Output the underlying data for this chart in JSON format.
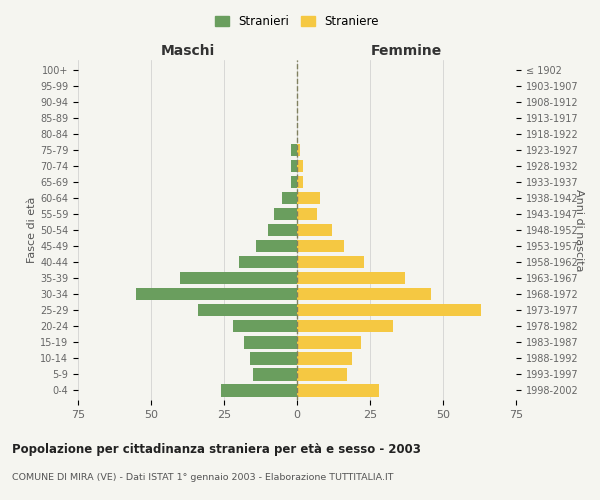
{
  "age_groups": [
    "0-4",
    "5-9",
    "10-14",
    "15-19",
    "20-24",
    "25-29",
    "30-34",
    "35-39",
    "40-44",
    "45-49",
    "50-54",
    "55-59",
    "60-64",
    "65-69",
    "70-74",
    "75-79",
    "80-84",
    "85-89",
    "90-94",
    "95-99",
    "100+"
  ],
  "birth_years": [
    "1998-2002",
    "1993-1997",
    "1988-1992",
    "1983-1987",
    "1978-1982",
    "1973-1977",
    "1968-1972",
    "1963-1967",
    "1958-1962",
    "1953-1957",
    "1948-1952",
    "1943-1947",
    "1938-1942",
    "1933-1937",
    "1928-1932",
    "1923-1927",
    "1918-1922",
    "1913-1917",
    "1908-1912",
    "1903-1907",
    "≤ 1902"
  ],
  "maschi": [
    26,
    15,
    16,
    18,
    22,
    34,
    55,
    40,
    20,
    14,
    10,
    8,
    5,
    2,
    2,
    2,
    0,
    0,
    0,
    0,
    0
  ],
  "femmine": [
    28,
    17,
    19,
    22,
    33,
    63,
    46,
    37,
    23,
    16,
    12,
    7,
    8,
    2,
    2,
    1,
    0,
    0,
    0,
    0,
    0
  ],
  "color_maschi": "#6a9e5e",
  "color_femmine": "#f5c842",
  "color_dashed": "#808060",
  "bg_color": "#f5f5f0",
  "grid_color": "#cccccc",
  "title": "Popolazione per cittadinanza straniera per età e sesso - 2003",
  "subtitle": "COMUNE DI MIRA (VE) - Dati ISTAT 1° gennaio 2003 - Elaborazione TUTTITALIA.IT",
  "xlabel_left": "Maschi",
  "xlabel_right": "Femmine",
  "ylabel_left": "Fasce di età",
  "ylabel_right": "Anni di nascita",
  "legend_maschi": "Stranieri",
  "legend_femmine": "Straniere",
  "xlim": 75
}
